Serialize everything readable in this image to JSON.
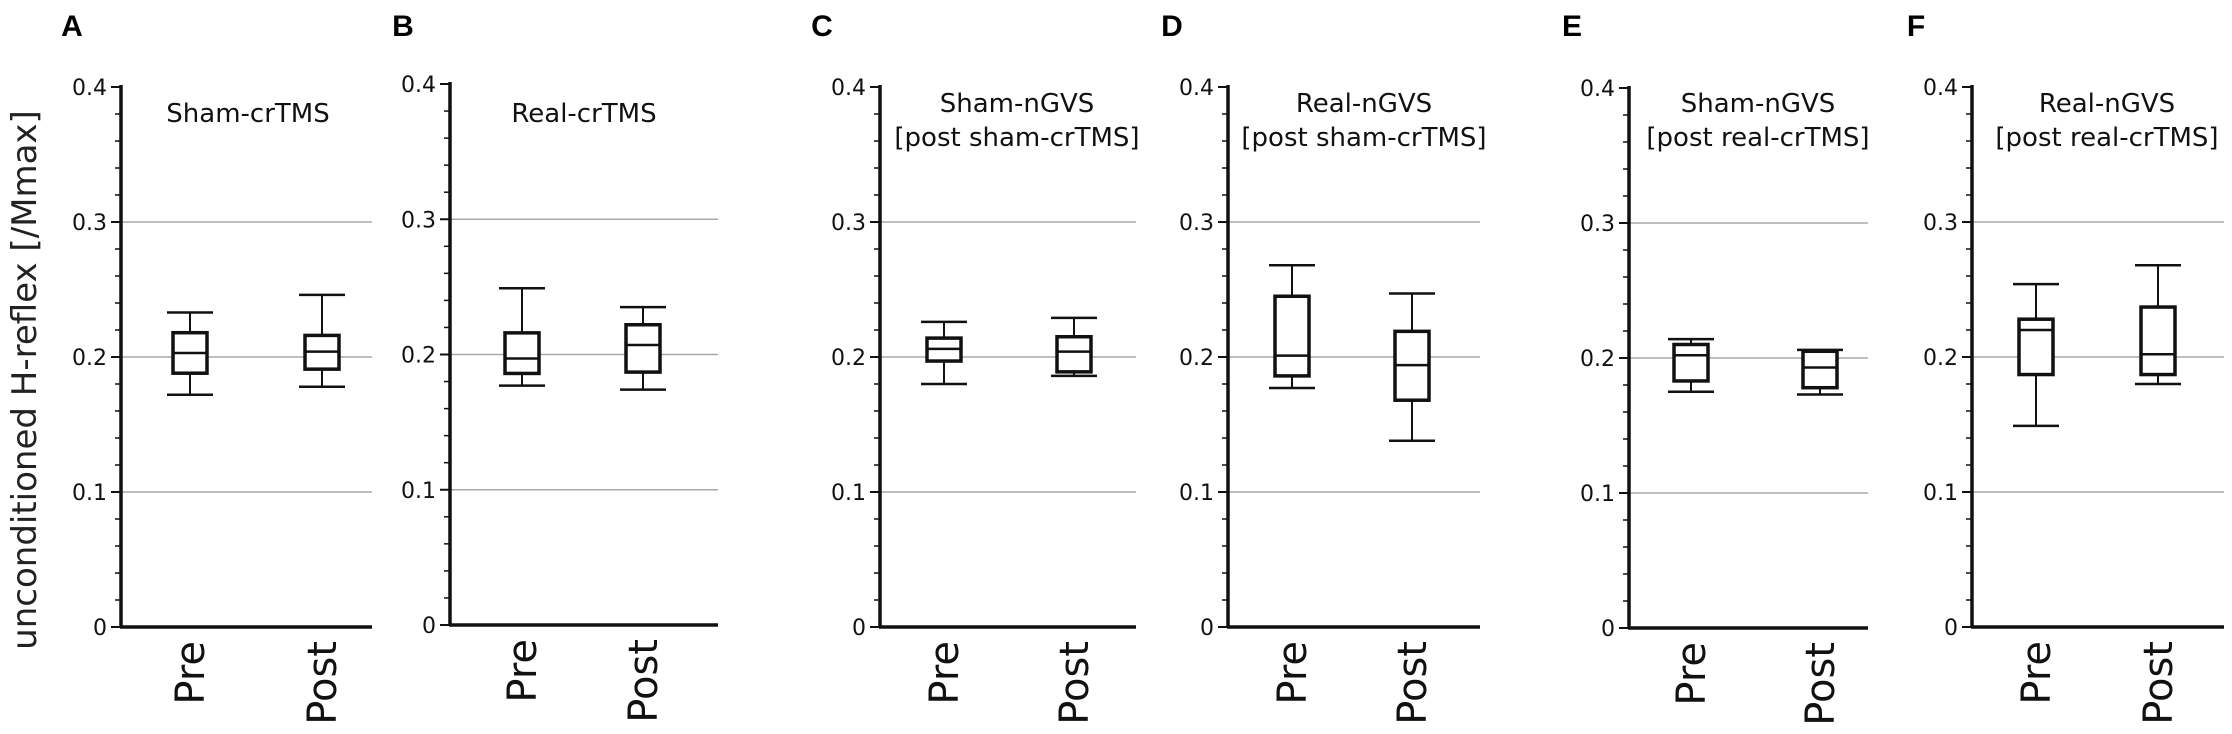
{
  "figure": {
    "ylabel": "unconditioned H-reflex [/Mmax]"
  },
  "chart_data": [
    {
      "type": "box",
      "panel": "A",
      "title_lines": [
        "Sham-crTMS"
      ],
      "categories": [
        "Pre",
        "Post"
      ],
      "ylim": [
        0,
        0.4
      ],
      "yticks": [
        "0",
        "0.1",
        "0.2",
        "0.3",
        "0.4"
      ],
      "gridlines": [
        0.1,
        0.2,
        0.3
      ],
      "boxes": [
        {
          "min": 0.172,
          "q1": 0.188,
          "median": 0.203,
          "q3": 0.218,
          "max": 0.233
        },
        {
          "min": 0.178,
          "q1": 0.191,
          "median": 0.204,
          "q3": 0.216,
          "max": 0.246
        }
      ]
    },
    {
      "type": "box",
      "panel": "B",
      "title_lines": [
        "Real-crTMS"
      ],
      "categories": [
        "Pre",
        "Post"
      ],
      "ylim": [
        0,
        0.4
      ],
      "yticks": [
        "0",
        "0.1",
        "0.2",
        "0.3",
        "0.4"
      ],
      "gridlines": [
        0.1,
        0.2,
        0.3
      ],
      "boxes": [
        {
          "min": 0.177,
          "q1": 0.186,
          "median": 0.197,
          "q3": 0.216,
          "max": 0.249
        },
        {
          "min": 0.174,
          "q1": 0.187,
          "median": 0.207,
          "q3": 0.222,
          "max": 0.235
        }
      ]
    },
    {
      "type": "box",
      "panel": "C",
      "title_lines": [
        "Sham-nGVS",
        "[post sham-crTMS]"
      ],
      "categories": [
        "Pre",
        "Post"
      ],
      "ylim": [
        0,
        0.4
      ],
      "yticks": [
        "0",
        "0.1",
        "0.2",
        "0.3",
        "0.4"
      ],
      "gridlines": [
        0.1,
        0.2,
        0.3
      ],
      "boxes": [
        {
          "min": 0.18,
          "q1": 0.197,
          "median": 0.206,
          "q3": 0.214,
          "max": 0.226
        },
        {
          "min": 0.186,
          "q1": 0.189,
          "median": 0.204,
          "q3": 0.215,
          "max": 0.229
        }
      ]
    },
    {
      "type": "box",
      "panel": "D",
      "title_lines": [
        "Real-nGVS",
        "[post sham-crTMS]"
      ],
      "categories": [
        "Pre",
        "Post"
      ],
      "ylim": [
        0,
        0.4
      ],
      "yticks": [
        "0",
        "0.1",
        "0.2",
        "0.3",
        "0.4"
      ],
      "gridlines": [
        0.1,
        0.2,
        0.3
      ],
      "boxes": [
        {
          "min": 0.177,
          "q1": 0.186,
          "median": 0.201,
          "q3": 0.245,
          "max": 0.268
        },
        {
          "min": 0.138,
          "q1": 0.168,
          "median": 0.194,
          "q3": 0.219,
          "max": 0.247
        }
      ]
    },
    {
      "type": "box",
      "panel": "E",
      "title_lines": [
        "Sham-nGVS",
        "[post real-crTMS]"
      ],
      "categories": [
        "Pre",
        "Post"
      ],
      "ylim": [
        0,
        0.4
      ],
      "yticks": [
        "0",
        "0.1",
        "0.2",
        "0.3",
        "0.4"
      ],
      "gridlines": [
        0.1,
        0.2,
        0.3
      ],
      "boxes": [
        {
          "min": 0.175,
          "q1": 0.183,
          "median": 0.202,
          "q3": 0.21,
          "max": 0.214
        },
        {
          "min": 0.173,
          "q1": 0.178,
          "median": 0.193,
          "q3": 0.205,
          "max": 0.206
        }
      ]
    },
    {
      "type": "box",
      "panel": "F",
      "title_lines": [
        "Real-nGVS",
        "[post real-crTMS]"
      ],
      "categories": [
        "Pre",
        "Post"
      ],
      "ylim": [
        0,
        0.4
      ],
      "yticks": [
        "0",
        "0.1",
        "0.2",
        "0.3",
        "0.4"
      ],
      "gridlines": [
        0.1,
        0.2,
        0.3
      ],
      "boxes": [
        {
          "min": 0.149,
          "q1": 0.187,
          "median": 0.22,
          "q3": 0.228,
          "max": 0.254
        },
        {
          "min": 0.18,
          "q1": 0.187,
          "median": 0.202,
          "q3": 0.237,
          "max": 0.268
        }
      ]
    }
  ]
}
